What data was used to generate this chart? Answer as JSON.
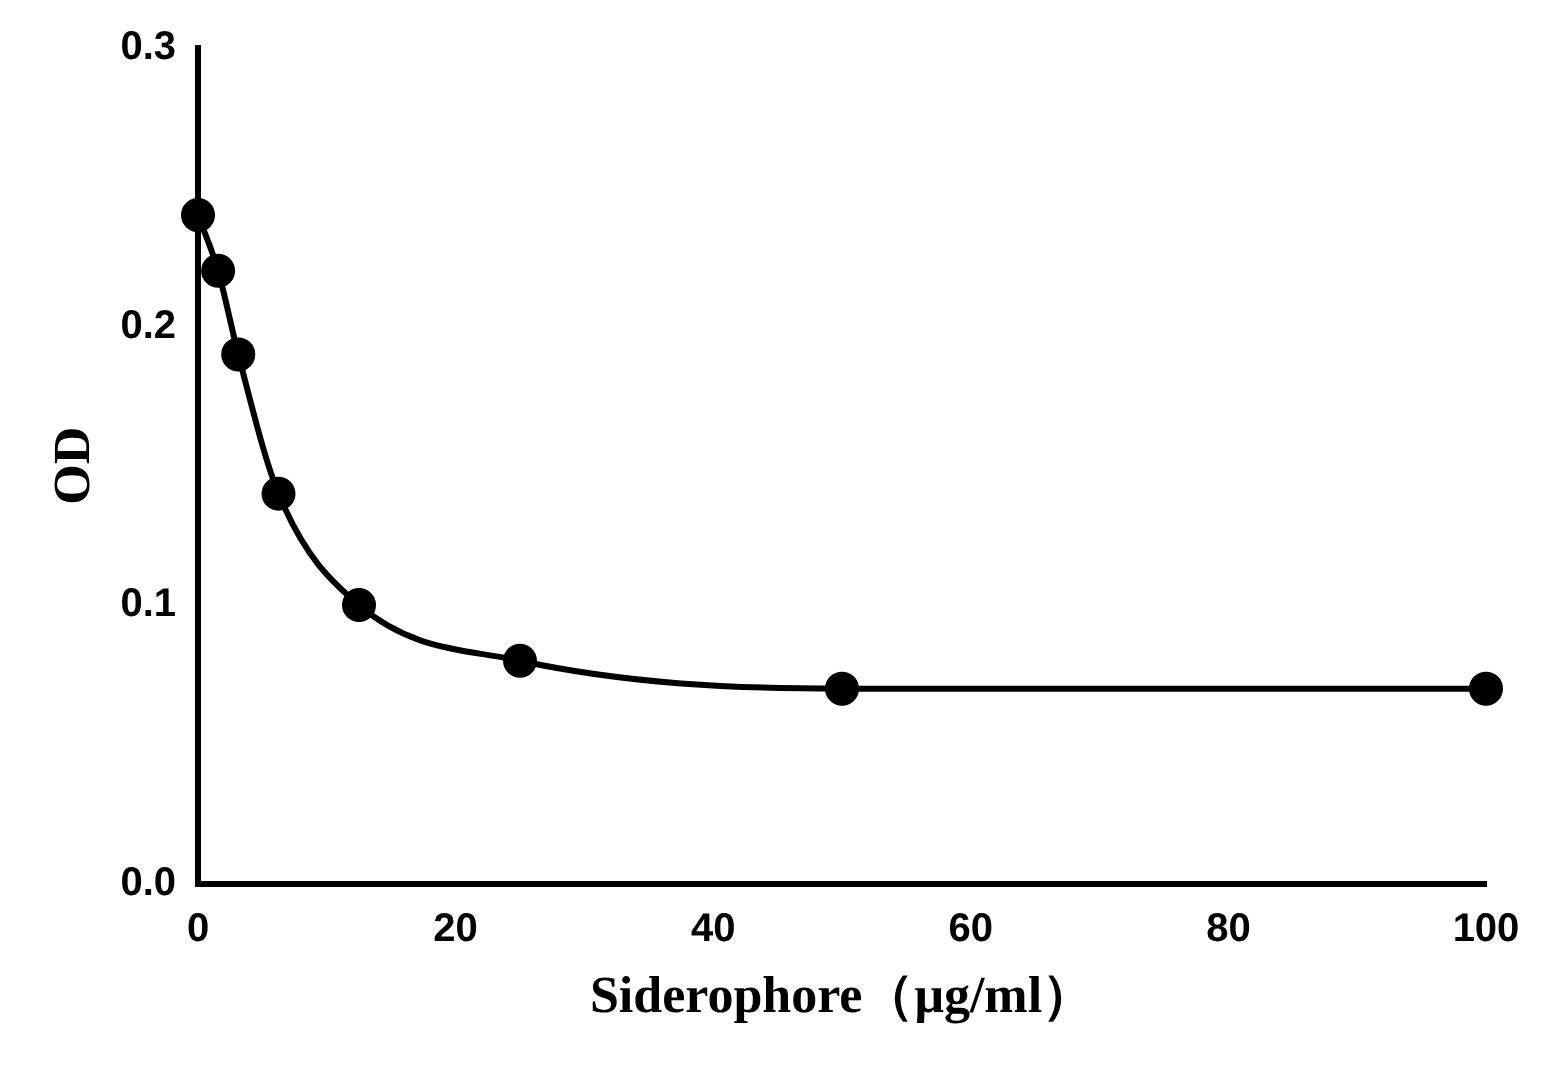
{
  "chart_data": {
    "type": "line",
    "xlabel": "Siderophore（μg/ml）",
    "ylabel": "OD",
    "x": [
      0,
      1.5625,
      3.125,
      6.25,
      12.5,
      25,
      50,
      100
    ],
    "series": [
      {
        "color": "#000000",
        "values": [
          0.24,
          0.22,
          0.19,
          0.14,
          0.1,
          0.08,
          0.07,
          0.07
        ]
      }
    ],
    "xlim": [
      0,
      100
    ],
    "xticks": [
      0,
      20,
      40,
      60,
      80,
      100
    ],
    "ylim": [
      0,
      0.3
    ],
    "yticks": [
      {
        "value": 0,
        "label": "0.0"
      },
      0.1,
      0.2,
      0.3
    ],
    "grid": false,
    "legend": false,
    "marker": "circle",
    "line_style": "solid"
  }
}
